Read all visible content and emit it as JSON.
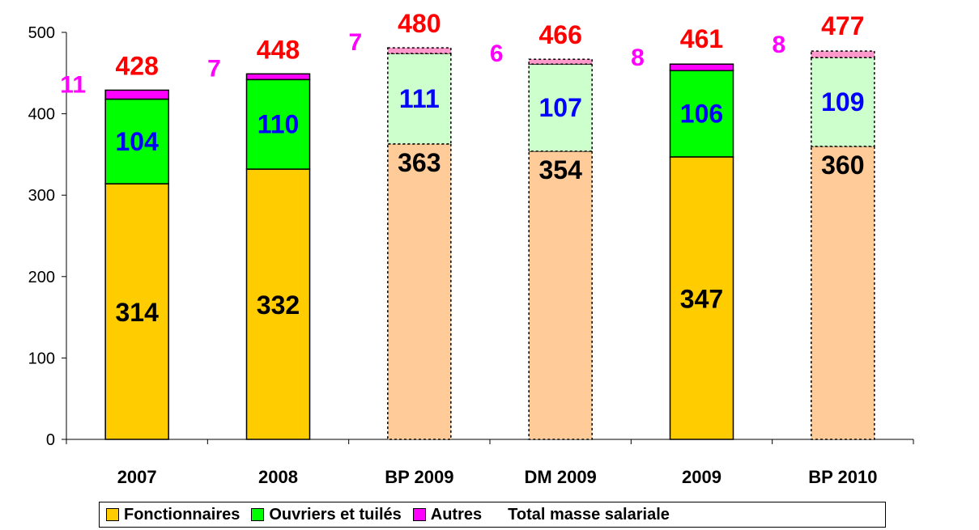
{
  "chart_data": {
    "type": "bar",
    "stacked": true,
    "categories": [
      "2007",
      "2008",
      "BP 2009",
      "DM 2009",
      "2009",
      "BP 2010"
    ],
    "projected": [
      false,
      false,
      true,
      true,
      false,
      true
    ],
    "ylim": [
      0,
      500
    ],
    "yticks": [
      "0",
      "100",
      "200",
      "300",
      "400",
      "500"
    ],
    "series": [
      {
        "name": "Fonctionnaires",
        "values": [
          314,
          332,
          363,
          354,
          347,
          360
        ],
        "color": "#FFCC00",
        "light_color": "#FFCC99",
        "label_color": "#000000"
      },
      {
        "name": "Ouvriers et tuilés",
        "values": [
          104,
          110,
          111,
          107,
          106,
          109
        ],
        "color": "#00FF00",
        "light_color": "#CCFFCC",
        "label_color": "#0000FF"
      },
      {
        "name": "Autres",
        "values": [
          11,
          7,
          7,
          6,
          8,
          8
        ],
        "color": "#FF00FF",
        "light_color": "#FF99CC",
        "label_color": "#FF00FF"
      }
    ],
    "totals": {
      "name": "Total masse salariale",
      "values": [
        428,
        448,
        480,
        466,
        461,
        477
      ],
      "label_color": "#FF0000"
    },
    "legend_position": "bottom"
  }
}
